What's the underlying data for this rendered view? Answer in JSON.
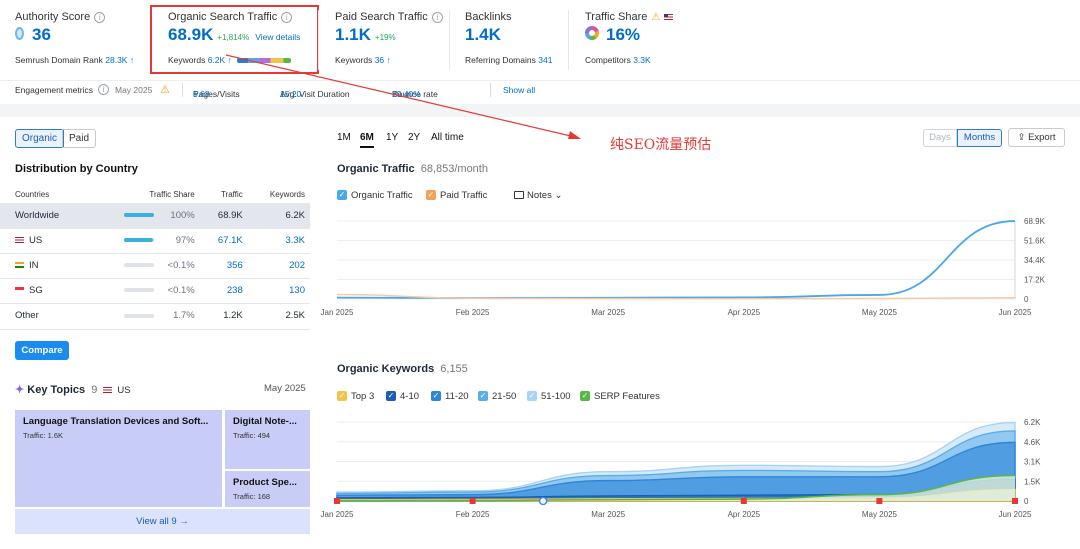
{
  "metrics": {
    "authority": {
      "title": "Authority Score",
      "value": "36",
      "sub_label": "Semrush Domain Rank",
      "sub_value": "28.3K"
    },
    "organic": {
      "title": "Organic Search Traffic",
      "value": "68.9K",
      "change": "+1,814%",
      "link": "View details",
      "sub_label": "Keywords",
      "sub_value": "6.2K"
    },
    "paid": {
      "title": "Paid Search Traffic",
      "value": "1.1K",
      "change": "+19%",
      "sub_label": "Keywords",
      "sub_value": "36"
    },
    "backlinks": {
      "title": "Backlinks",
      "value": "1.4K",
      "sub_label": "Referring Domains",
      "sub_value": "341"
    },
    "share": {
      "title": "Traffic Share",
      "value": "16%",
      "sub_label": "Competitors",
      "sub_value": "3.3K"
    }
  },
  "engagement": {
    "label": "Engagement metrics",
    "date": "May 2025",
    "pages_label": "Pages/Visits",
    "pages_value": "6.68",
    "duration_label": "Avg. Visit Duration",
    "duration_value": "15:20",
    "bounce_label": "Bounce rate",
    "bounce_value": "29.40%",
    "show_all": "Show all"
  },
  "toggle": {
    "organic": "Organic",
    "paid": "Paid"
  },
  "distribution": {
    "title": "Distribution by Country",
    "headers": [
      "Countries",
      "Traffic Share",
      "Traffic",
      "Keywords"
    ],
    "rows": [
      {
        "country": "Worldwide",
        "share": "100%",
        "share_frac": 1.0,
        "traffic": "68.9K",
        "keywords": "6.2K"
      },
      {
        "country": "US",
        "share": "97%",
        "share_frac": 0.97,
        "traffic": "67.1K",
        "keywords": "3.3K"
      },
      {
        "country": "IN",
        "share": "<0.1%",
        "share_frac": 0.0,
        "traffic": "356",
        "keywords": "202"
      },
      {
        "country": "SG",
        "share": "<0.1%",
        "share_frac": 0.0,
        "traffic": "238",
        "keywords": "130"
      },
      {
        "country": "Other",
        "share": "1.7%",
        "share_frac": 0.0,
        "traffic": "1.2K",
        "keywords": "2.5K"
      }
    ],
    "compare": "Compare"
  },
  "topics": {
    "title": "Key Topics",
    "count": "9",
    "country": "US",
    "date": "May 2025",
    "tiles": [
      {
        "name": "Language Translation Devices and Soft...",
        "traffic": "Traffic: 1.6K"
      },
      {
        "name": "Digital Note-...",
        "traffic": "Traffic: 494"
      },
      {
        "name": "Product Spe...",
        "traffic": "Traffic: 168"
      }
    ],
    "view_all": "View all 9"
  },
  "periods": [
    "1M",
    "6M",
    "1Y",
    "2Y",
    "All time"
  ],
  "view_toggle": {
    "days": "Days",
    "months": "Months",
    "export": "Export"
  },
  "annotation": "纯SEO流量预估",
  "traffic_chart": {
    "title": "Organic Traffic",
    "value": "68,853/month",
    "legend": [
      "Organic Traffic",
      "Paid Traffic",
      "Notes"
    ]
  },
  "keywords_chart": {
    "title": "Organic Keywords",
    "value": "6,155",
    "legend": [
      "Top 3",
      "4-10",
      "11-20",
      "21-50",
      "51-100",
      "SERP Features"
    ]
  },
  "colors": {
    "accent": "#006dca",
    "organic": "#4aa8e8",
    "paid": "#f4a259",
    "serp": "#58b847",
    "annotation": "#e53935"
  },
  "chart_data": [
    {
      "type": "line",
      "title": "Organic Traffic",
      "x": [
        "Jan 2025",
        "Feb 2025",
        "Mar 2025",
        "Apr 2025",
        "May 2025",
        "Jun 2025"
      ],
      "y_ticks": [
        "0",
        "17.2K",
        "34.4K",
        "51.6K",
        "68.9K"
      ],
      "ylim": [
        0,
        68900
      ],
      "series": [
        {
          "name": "Organic Traffic",
          "values": [
            1200,
            900,
            1100,
            1400,
            3600,
            68853
          ]
        },
        {
          "name": "Paid Traffic",
          "values": [
            4000,
            700,
            300,
            250,
            400,
            1100
          ]
        }
      ]
    },
    {
      "type": "area",
      "title": "Organic Keywords",
      "x": [
        "Jan 2025",
        "Feb 2025",
        "Mar 2025",
        "Apr 2025",
        "May 2025",
        "Jun 2025"
      ],
      "y_ticks": [
        "0",
        "1.5K",
        "3.1K",
        "4.6K",
        "6.2K"
      ],
      "ylim": [
        0,
        6200
      ],
      "series": [
        {
          "name": "Top 3",
          "values": [
            100,
            120,
            180,
            200,
            230,
            900
          ]
        },
        {
          "name": "4-10",
          "values": [
            250,
            280,
            400,
            460,
            500,
            1700
          ]
        },
        {
          "name": "11-20",
          "values": [
            450,
            500,
            1600,
            1900,
            1900,
            4600
          ]
        },
        {
          "name": "21-50",
          "values": [
            600,
            700,
            2000,
            2400,
            2300,
            5500
          ]
        },
        {
          "name": "51-100",
          "values": [
            700,
            800,
            2300,
            2800,
            2700,
            6155
          ]
        },
        {
          "name": "SERP Features",
          "values": [
            20,
            30,
            100,
            150,
            500,
            2000
          ]
        }
      ]
    }
  ]
}
